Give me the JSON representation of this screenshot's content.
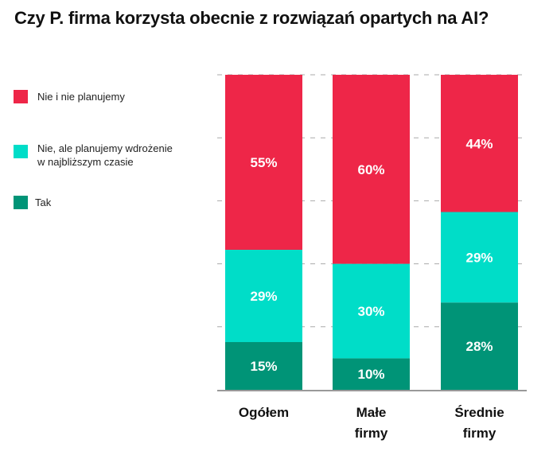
{
  "chart_data": {
    "type": "bar",
    "stacked": true,
    "title": "Czy P. firma korzysta obecnie z rozwiązań opartych na AI?",
    "categories": [
      [
        "Ogółem"
      ],
      [
        "Małe",
        "firmy"
      ],
      [
        "Średnie",
        "firmy"
      ]
    ],
    "series": [
      {
        "name": "Tak",
        "color": "#009477",
        "values": [
          15,
          10,
          28
        ],
        "labels": [
          "15%",
          "10%",
          "28%"
        ]
      },
      {
        "name": "Nie, ale planujemy wdrożenie w najbliższym czasie",
        "color": "#00DDC8",
        "values": [
          29,
          30,
          29
        ],
        "labels": [
          "29%",
          "30%",
          "29%"
        ]
      },
      {
        "name": "Nie i nie planujemy",
        "color": "#EE2648",
        "values": [
          55,
          60,
          44
        ],
        "labels": [
          "55%",
          "60%",
          "44%"
        ]
      }
    ],
    "ylim": [
      0,
      100
    ],
    "grid": true,
    "legend_position": "left",
    "xlabel": "",
    "ylabel": ""
  },
  "legend": [
    {
      "label_lines": [
        "Nie i nie planujemy"
      ],
      "color": "#EE2648"
    },
    {
      "label_lines": [
        "Nie, ale planujemy wdrożenie",
        "w najbliższym czasie"
      ],
      "color": "#00DDC8"
    },
    {
      "label_lines": [
        "Tak"
      ],
      "color": "#009477"
    }
  ]
}
